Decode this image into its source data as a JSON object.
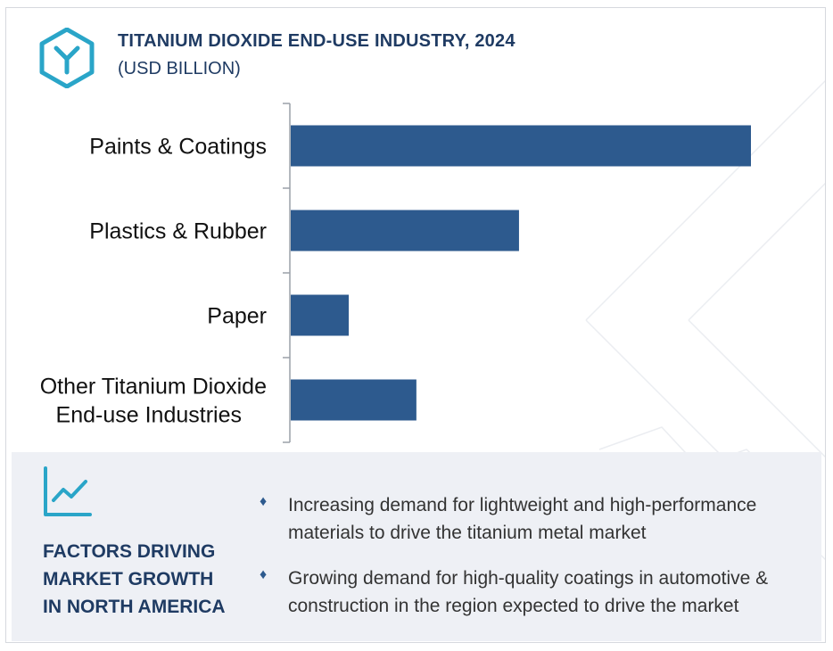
{
  "header": {
    "title": "TITANIUM DIOXIDE END-USE INDUSTRY, 2024",
    "subtitle": "(USD BILLION)",
    "logo_icon": "hexagon-y-logo-icon",
    "accent_color": "#2aa5c8",
    "title_color": "#1f3b63"
  },
  "chart_data": {
    "type": "bar",
    "orientation": "horizontal",
    "title": "TITANIUM DIOXIDE END-USE INDUSTRY, 2024",
    "subtitle": "(USD BILLION)",
    "categories": [
      "Paints & Coatings",
      "Plastics & Rubber",
      "Paper",
      "Other Titanium Dioxide End-use Industries"
    ],
    "category_lines": [
      [
        "Paints & Coatings"
      ],
      [
        "Plastics & Rubber"
      ],
      [
        "Paper"
      ],
      [
        "Other Titanium Dioxide",
        "End-use Industries"
      ]
    ],
    "values": [
      100,
      49.6,
      12.6,
      27.3
    ],
    "value_note": "relative bar lengths; no values are printed on the chart",
    "bar_color": "#2d5a8e",
    "value_axis_visible": false,
    "grid": false,
    "legend": "none"
  },
  "factors": {
    "icon": "trend-chart-icon",
    "title": "FACTORS DRIVING\nMARKET GROWTH\nIN NORTH AMERICA",
    "bullet_icon": "diamond-bullet-icon",
    "items": [
      {
        "text": "Increasing demand for lightweight and high-performance materials to drive the titanium metal market"
      },
      {
        "text": "Growing demand for high-quality coatings in automotive & construction in the region expected to drive the market"
      }
    ]
  }
}
